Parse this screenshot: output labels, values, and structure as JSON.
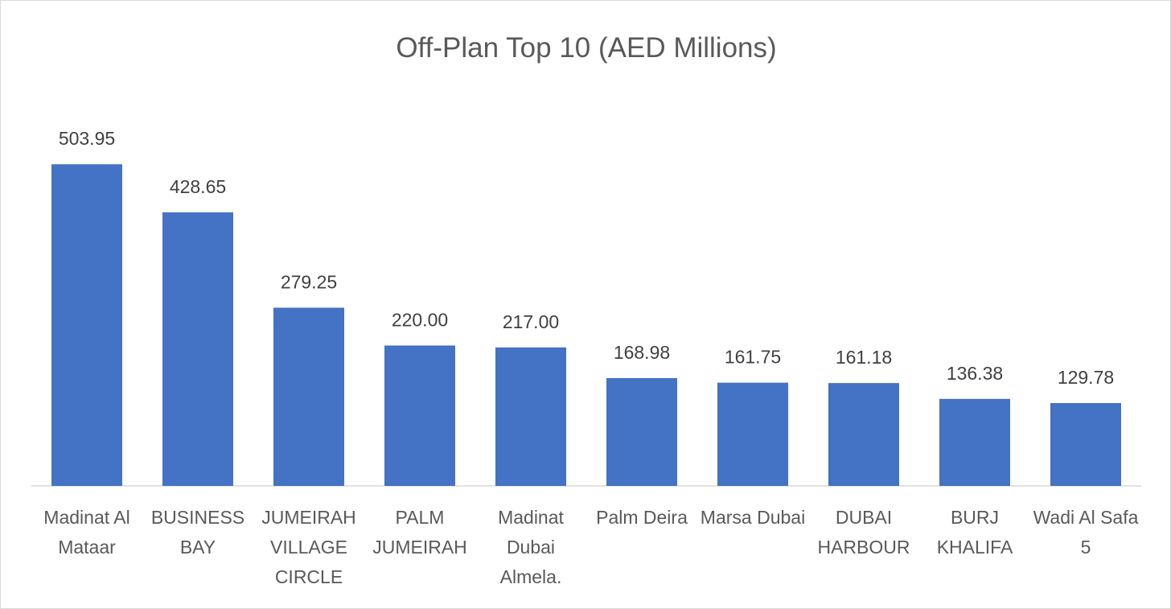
{
  "chart_data": {
    "type": "bar",
    "title": "Off-Plan Top 10 (AED Millions)",
    "categories": [
      "Madinat Al Mataar",
      "BUSINESS BAY",
      "JUMEIRAH VILLAGE CIRCLE",
      "PALM JUMEIRAH",
      "Madinat Dubai Almela.",
      "Palm Deira",
      "Marsa Dubai",
      "DUBAI HARBOUR",
      "BURJ KHALIFA",
      "Wadi Al Safa 5"
    ],
    "values": [
      503.95,
      428.65,
      279.25,
      220,
      217,
      168.98,
      161.75,
      161.18,
      136.38,
      129.78
    ],
    "value_labels": [
      "503.95",
      "428.65",
      "279.25",
      "220.00",
      "217.00",
      "168.98",
      "161.75",
      "161.18",
      "136.38",
      "129.78"
    ],
    "color": "#4472c4",
    "ylim": [
      0,
      600
    ]
  }
}
